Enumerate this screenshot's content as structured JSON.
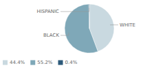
{
  "chart_data": {
    "type": "pie",
    "categories": [
      "WHITE",
      "BLACK",
      "HISPANIC"
    ],
    "values": [
      44.4,
      55.2,
      0.4
    ],
    "value_labels": [
      "44.4%",
      "55.2%",
      "0.4%"
    ],
    "colors": [
      "#c9d9e0",
      "#7fa8b8",
      "#2d5a7a"
    ],
    "legend": "lower left"
  }
}
